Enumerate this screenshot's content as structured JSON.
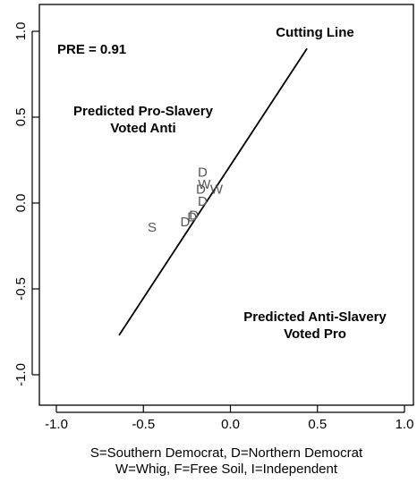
{
  "chart_data": {
    "type": "scatter",
    "title": "",
    "xlabel": "S=Southern Democrat, D=Northern Democrat",
    "xlabel_line2": "W=Whig, F=Free Soil, I=Independent",
    "ylabel": "",
    "xlim": [
      -1.0,
      1.0
    ],
    "ylim": [
      -1.0,
      1.0
    ],
    "x_ticks": [
      "-1.0",
      "-0.5",
      "0.0",
      "0.5",
      "1.0"
    ],
    "y_ticks": [
      "-1.0",
      "-0.5",
      "0.0",
      "0.5",
      "1.0"
    ],
    "grid": false,
    "legend": "none",
    "cutting_line": {
      "label": "Cutting Line",
      "from": {
        "x": -0.64,
        "y": -0.77
      },
      "to": {
        "x": 0.44,
        "y": 0.9
      }
    },
    "annotations": {
      "pre": "PRE =  0.91",
      "pro_line1": "Predicted Pro-Slavery",
      "pro_line2": "Voted Anti",
      "anti_line1": "Predicted Anti-Slavery",
      "anti_line2": "Voted Pro"
    },
    "points": [
      {
        "label": "S",
        "x": -0.45,
        "y": -0.14
      },
      {
        "label": "D",
        "x": -0.26,
        "y": -0.11
      },
      {
        "label": "D",
        "x": -0.22,
        "y": -0.08
      },
      {
        "label": "D",
        "x": -0.21,
        "y": -0.07
      },
      {
        "label": "D",
        "x": -0.16,
        "y": 0.01
      },
      {
        "label": "D",
        "x": -0.16,
        "y": 0.18
      },
      {
        "label": "D",
        "x": -0.17,
        "y": 0.08
      },
      {
        "label": "W",
        "x": -0.15,
        "y": 0.11
      },
      {
        "label": "W",
        "x": -0.08,
        "y": 0.08
      }
    ]
  }
}
